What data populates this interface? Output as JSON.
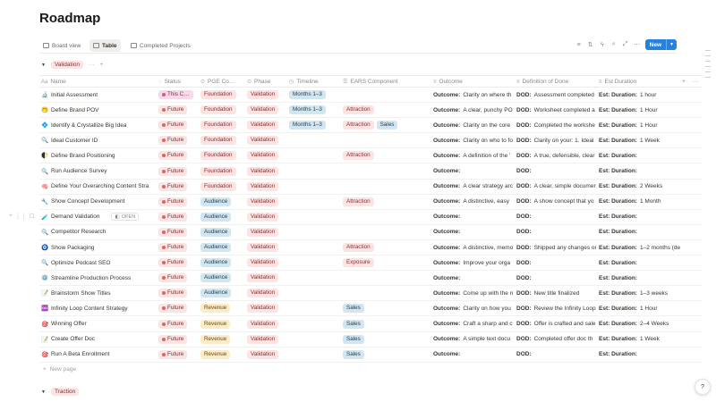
{
  "page": {
    "title": "Roadmap"
  },
  "views": {
    "tabs": [
      {
        "label": "Board view",
        "icon": "board-icon"
      },
      {
        "label": "Table",
        "icon": "table-icon"
      },
      {
        "label": "Completed Projects",
        "icon": "gallery-icon"
      }
    ],
    "new_label": "New"
  },
  "groups": [
    {
      "label": "Validation",
      "ellipsis": "···",
      "add": "+"
    },
    {
      "label": "Traction"
    }
  ],
  "columns": [
    {
      "label": "Name",
      "icon": "Aa"
    },
    {
      "label": "Status",
      "icon": "◌"
    },
    {
      "label": "PGE Co…",
      "icon": "⊙"
    },
    {
      "label": "Phase",
      "icon": "⊙"
    },
    {
      "label": "Timeline",
      "icon": "◷"
    },
    {
      "label": "EARS Component",
      "icon": "☰"
    },
    {
      "label": "Outcome",
      "icon": "≡"
    },
    {
      "label": "Definition of Done",
      "icon": "≡"
    },
    {
      "label": "Est Duration",
      "icon": "≡"
    }
  ],
  "header_add": "+",
  "header_more": "···",
  "labels": {
    "outcome": "Outcome:",
    "dod": "DOD:",
    "duration": "Est: Duration:"
  },
  "rows": [
    {
      "emoji": "🔬",
      "name": "Initial Assessment",
      "status": "This C…",
      "pge": "Foundation",
      "phase": "Validation",
      "timeline": "Months 1–3",
      "ears": [],
      "outcome": "Clarity on where th",
      "dod": "Assessment completed",
      "duration": "1 hour"
    },
    {
      "emoji": "🤭",
      "name": "Define Brand POV",
      "status": "Future",
      "pge": "Foundation",
      "phase": "Validation",
      "timeline": "Months 1–3",
      "ears": [
        "Attraction"
      ],
      "outcome": "A clear, punchy PO",
      "dod": "Worksheet completed a",
      "duration": "1 Hour"
    },
    {
      "emoji": "💠",
      "name": "Identify & Crystallize Big Idea",
      "status": "Future",
      "pge": "Foundation",
      "phase": "Validation",
      "timeline": "Months 1–3",
      "ears": [
        "Attraction",
        "Sales"
      ],
      "outcome": "Clarity on the core",
      "dod": "Completed the workshe",
      "duration": "1 Hour"
    },
    {
      "emoji": "🔍",
      "name": "Ideal Customer ID",
      "status": "Future",
      "pge": "Foundation",
      "phase": "Validation",
      "timeline": "",
      "ears": [],
      "outcome": "Clarity on who to fo",
      "dod": "Clarity on your: 1. Ideal",
      "duration": "1 Week"
    },
    {
      "emoji": "🌓",
      "name": "Define Brand Positioning",
      "status": "Future",
      "pge": "Foundation",
      "phase": "Validation",
      "timeline": "",
      "ears": [
        "Attraction"
      ],
      "outcome": "A definition of the '",
      "dod": "A true, defensible, clear",
      "duration": ""
    },
    {
      "emoji": "🔍",
      "name": "Run Audience Survey",
      "status": "Future",
      "pge": "Foundation",
      "phase": "Validation",
      "timeline": "",
      "ears": [],
      "outcome": "",
      "dod": "",
      "duration": ""
    },
    {
      "emoji": "🧠",
      "name": "Define Your Overarching Content Stra",
      "status": "Future",
      "pge": "Foundation",
      "phase": "Validation",
      "timeline": "",
      "ears": [],
      "outcome": "A clear strategy arc",
      "dod": "A clear, simple documer",
      "duration": "2 Weeks"
    },
    {
      "emoji": "🔧",
      "name": "Show Concept Development",
      "status": "Future",
      "pge": "Audience",
      "phase": "Validation",
      "timeline": "",
      "ears": [
        "Attraction"
      ],
      "outcome": "A distinctive, easy",
      "dod": "A show concept that yo",
      "duration": "1 Month"
    },
    {
      "emoji": "🧪",
      "name": "Demand Validation",
      "status": "Future",
      "pge": "Audience",
      "phase": "Validation",
      "timeline": "",
      "ears": [],
      "outcome": "",
      "dod": "",
      "duration": "",
      "open": "OPEN"
    },
    {
      "emoji": "🔍",
      "name": "Competitor Research",
      "status": "Future",
      "pge": "Audience",
      "phase": "Validation",
      "timeline": "",
      "ears": [],
      "outcome": "",
      "dod": "",
      "duration": ""
    },
    {
      "emoji": "🧿",
      "name": "Show Packaging",
      "status": "Future",
      "pge": "Audience",
      "phase": "Validation",
      "timeline": "",
      "ears": [
        "Attraction"
      ],
      "outcome": "A distinctive, memo",
      "dod": "Shipped any changes or",
      "duration": "1–2 months (de"
    },
    {
      "emoji": "🔍",
      "name": "Optimize Podcast SEO",
      "status": "Future",
      "pge": "Audience",
      "phase": "Validation",
      "timeline": "",
      "ears": [
        "Exposure"
      ],
      "outcome": "Improve your orga",
      "dod": "",
      "duration": ""
    },
    {
      "emoji": "⚙️",
      "name": "Streamline Production Process",
      "status": "Future",
      "pge": "Audience",
      "phase": "Validation",
      "timeline": "",
      "ears": [],
      "outcome": "",
      "dod": "",
      "duration": ""
    },
    {
      "emoji": "📝",
      "name": "Brainstorm Show Titles",
      "status": "Future",
      "pge": "Audience",
      "phase": "Validation",
      "timeline": "",
      "ears": [],
      "outcome": "Come up with the n",
      "dod": "New title finalized",
      "duration": "1–3 weeks"
    },
    {
      "emoji": "♾️",
      "name": "Infinity Loop Content Strategy",
      "status": "Future",
      "pge": "Revenue",
      "phase": "Validation",
      "timeline": "",
      "ears": [
        "Sales"
      ],
      "outcome": "Clarity on how you",
      "dod": "Review the Infinity Loop",
      "duration": "1 Hour"
    },
    {
      "emoji": "🎯",
      "name": "Winning Offer",
      "status": "Future",
      "pge": "Revenue",
      "phase": "Validation",
      "timeline": "",
      "ears": [
        "Sales"
      ],
      "outcome": "Craft a sharp and c",
      "dod": "Offer is crafted and sale",
      "duration": "2–4 Weeks"
    },
    {
      "emoji": "📝",
      "name": "Create Offer Doc",
      "status": "Future",
      "pge": "Revenue",
      "phase": "Validation",
      "timeline": "",
      "ears": [
        "Sales"
      ],
      "outcome": "A simple text docu",
      "dod": "Completed offer doc th",
      "duration": "1 Week"
    },
    {
      "emoji": "🎯",
      "name": "Run A Beta Enrollment",
      "status": "Future",
      "pge": "Revenue",
      "phase": "Validation",
      "timeline": "",
      "ears": [
        "Sales"
      ],
      "outcome": "",
      "dod": "",
      "duration": ""
    }
  ],
  "new_page": {
    "plus": "+",
    "label": "New page"
  },
  "help": {
    "label": "?"
  }
}
